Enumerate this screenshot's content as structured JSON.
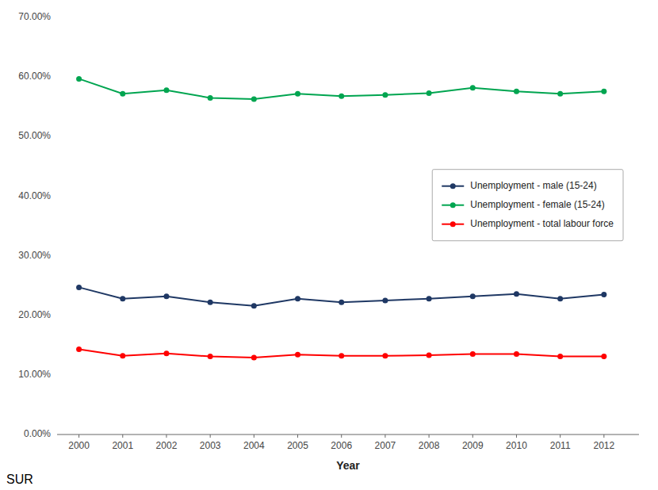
{
  "chart_data": {
    "type": "line",
    "x": [
      2000,
      2001,
      2002,
      2003,
      2004,
      2005,
      2006,
      2007,
      2008,
      2009,
      2010,
      2011,
      2012
    ],
    "series": [
      {
        "name": "Unemployment - male (15-24)",
        "color": "#1f3864",
        "marker": "circle",
        "values": [
          0.247,
          0.228,
          0.232,
          0.222,
          0.216,
          0.228,
          0.222,
          0.225,
          0.228,
          0.232,
          0.236,
          0.228,
          0.235
        ]
      },
      {
        "name": "Unemployment - female (15-24)",
        "color": "#00a550",
        "marker": "circle",
        "values": [
          0.597,
          0.572,
          0.578,
          0.565,
          0.563,
          0.572,
          0.568,
          0.57,
          0.573,
          0.582,
          0.576,
          0.572,
          0.576
        ]
      },
      {
        "name": "Unemployment - total labour force",
        "color": "#ff0000",
        "marker": "circle",
        "values": [
          0.143,
          0.132,
          0.136,
          0.131,
          0.129,
          0.134,
          0.132,
          0.132,
          0.133,
          0.135,
          0.135,
          0.131,
          0.131
        ]
      }
    ],
    "x_label": "Year",
    "xlim": [
      1999.5,
      2012.8
    ],
    "xticks": [
      2000,
      2001,
      2002,
      2003,
      2004,
      2005,
      2006,
      2007,
      2008,
      2009,
      2010,
      2011,
      2012
    ],
    "ylim": [
      0.0,
      0.7
    ],
    "yticks": [
      {
        "value": 0.0,
        "label": "0.00%"
      },
      {
        "value": 0.1,
        "label": "10.00%"
      },
      {
        "value": 0.2,
        "label": "20.00%"
      },
      {
        "value": 0.3,
        "label": "30.00%"
      },
      {
        "value": 0.4,
        "label": "40.00%"
      },
      {
        "value": 0.5,
        "label": "50.00%"
      },
      {
        "value": 0.6,
        "label": "60.00%"
      },
      {
        "value": 0.7,
        "label": "70.00%"
      }
    ],
    "grid": false,
    "legend": "right",
    "annotations": [
      "SUR"
    ]
  }
}
